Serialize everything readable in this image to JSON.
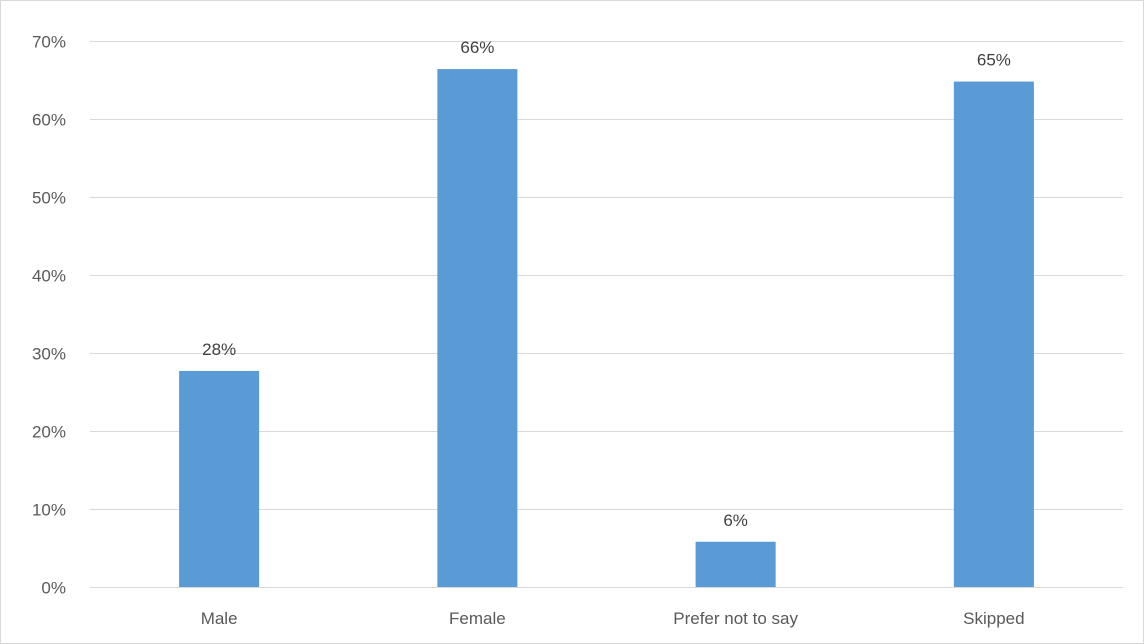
{
  "chart_data": {
    "type": "bar",
    "title": "",
    "xlabel": "",
    "ylabel": "",
    "categories": [
      "Male",
      "Female",
      "Prefer not to say",
      "Skipped"
    ],
    "values": [
      27.7,
      66.4,
      5.8,
      64.8
    ],
    "data_labels": [
      "28%",
      "66%",
      "6%",
      "65%"
    ],
    "ylim": [
      0,
      70
    ],
    "y_ticks": [
      0,
      10,
      20,
      30,
      40,
      50,
      60,
      70
    ],
    "y_tick_labels": [
      "0%",
      "10%",
      "20%",
      "30%",
      "40%",
      "50%",
      "60%",
      "70%"
    ],
    "grid": true,
    "legend": "none",
    "colors": {
      "bar": "#5b9bd5",
      "grid": "#d9d9d9",
      "axis_text": "#595959",
      "label_text": "#404040",
      "border": "#d9d9d9"
    }
  }
}
